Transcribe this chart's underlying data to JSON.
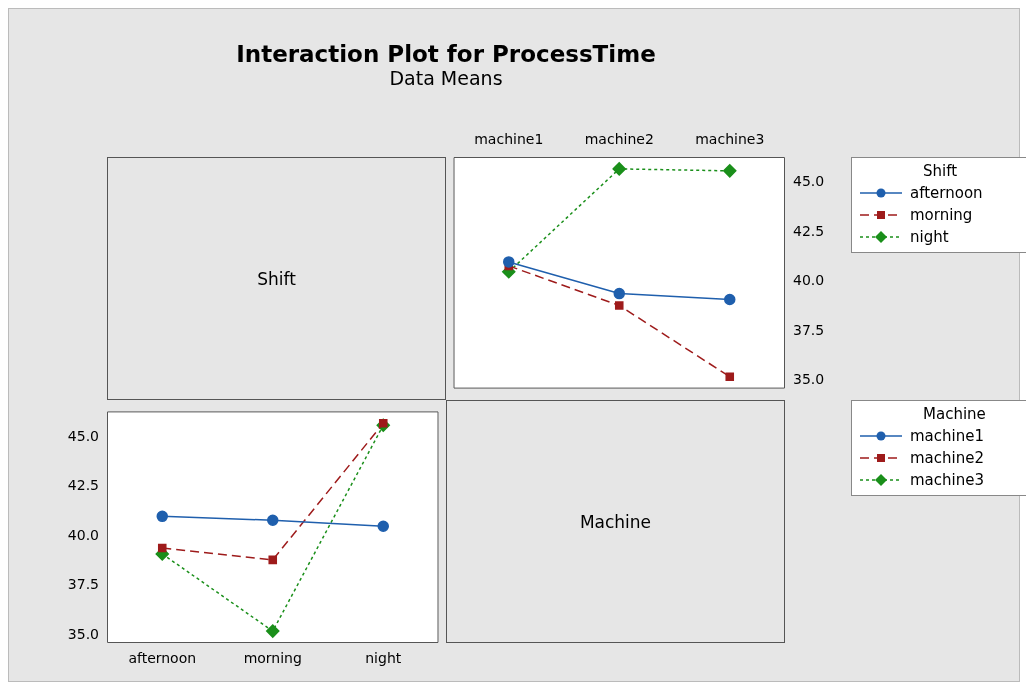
{
  "chart_data": [
    {
      "type": "other",
      "title": "Interaction Plot for ProcessTime",
      "subtitle": "Data Means",
      "annotations": [
        "Shift"
      ]
    },
    {
      "type": "line",
      "categories": [
        "machine1",
        "machine2",
        "machine3"
      ],
      "ylim": [
        34.6,
        46.3
      ],
      "yticks": [
        {
          "value": 35,
          "label": "35.0"
        },
        {
          "value": 37.5,
          "label": "37.5"
        },
        {
          "value": 40,
          "label": "40.0"
        },
        {
          "value": 42.5,
          "label": "42.5"
        },
        {
          "value": 45,
          "label": "45.0"
        }
      ],
      "grid": false,
      "legend": "right",
      "legend_title": "Shift",
      "series": [
        {
          "name": "afternoon",
          "color": "#1f5fad",
          "marker": "circle",
          "line_style": "solid",
          "values": [
            41.0,
            39.4,
            39.1
          ]
        },
        {
          "name": "morning",
          "color": "#9e1b1b",
          "marker": "square",
          "line_style": "dashed",
          "values": [
            40.8,
            38.8,
            35.2
          ]
        },
        {
          "name": "night",
          "color": "#1a8f1a",
          "marker": "diamond",
          "line_style": "dotted",
          "values": [
            40.5,
            45.7,
            45.6
          ]
        }
      ]
    },
    {
      "type": "line",
      "categories": [
        "afternoon",
        "morning",
        "night"
      ],
      "ylim": [
        34.6,
        46.3
      ],
      "yticks": [
        {
          "value": 35,
          "label": "35.0"
        },
        {
          "value": 37.5,
          "label": "37.5"
        },
        {
          "value": 40,
          "label": "40.0"
        },
        {
          "value": 42.5,
          "label": "42.5"
        },
        {
          "value": 45,
          "label": "45.0"
        }
      ],
      "grid": false,
      "legend": "right",
      "legend_title": "Machine",
      "series": [
        {
          "name": "machine1",
          "color": "#1f5fad",
          "marker": "circle",
          "line_style": "solid",
          "values": [
            41.0,
            40.8,
            40.5
          ]
        },
        {
          "name": "machine2",
          "color": "#9e1b1b",
          "marker": "square",
          "line_style": "dashed",
          "values": [
            39.4,
            38.8,
            45.7
          ]
        },
        {
          "name": "machine3",
          "color": "#1a8f1a",
          "marker": "diamond",
          "line_style": "dotted",
          "values": [
            39.1,
            35.2,
            45.6
          ]
        }
      ]
    },
    {
      "type": "other",
      "annotations": [
        "Machine"
      ]
    }
  ]
}
